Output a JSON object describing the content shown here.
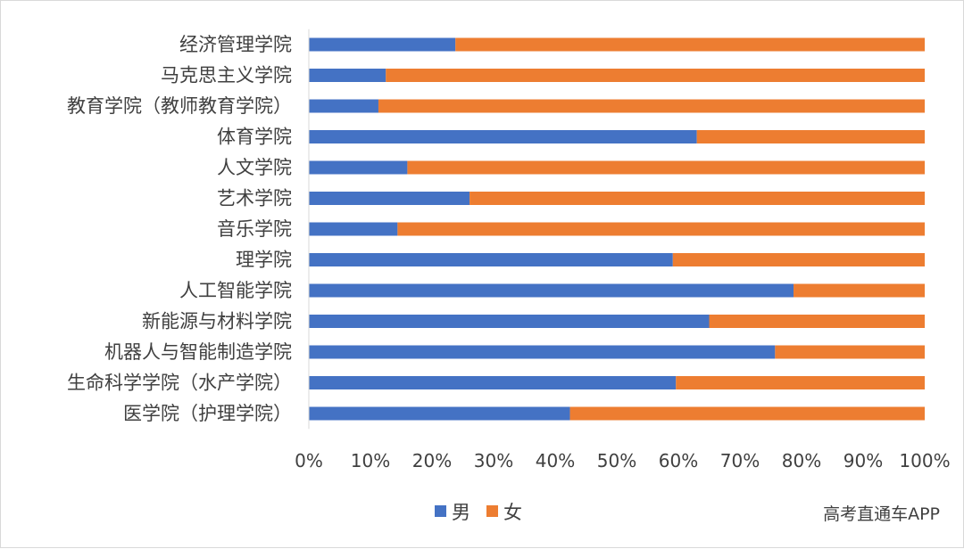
{
  "chart_data": {
    "type": "bar",
    "orientation": "horizontal",
    "stacked": "percent",
    "categories": [
      "经济管理学院",
      "马克思主义学院",
      "教育学院（教师教育学院）",
      "体育学院",
      "人文学院",
      "艺术学院",
      "音乐学院",
      "理学院",
      "人工智能学院",
      "新能源与材料学院",
      "机器人与智能制造学院",
      "生命科学学院（水产学院）",
      "医学院（护理学院）"
    ],
    "series": [
      {
        "name": "男",
        "color": "#4472C4",
        "values": [
          23.8,
          12.5,
          11.3,
          63.0,
          16.0,
          26.1,
          14.4,
          59.1,
          78.7,
          65.0,
          75.7,
          59.6,
          42.4
        ]
      },
      {
        "name": "女",
        "color": "#ED7D31",
        "values": [
          76.2,
          87.5,
          88.7,
          37.0,
          84.0,
          73.9,
          85.6,
          40.9,
          21.3,
          35.0,
          24.3,
          40.4,
          57.6
        ]
      }
    ],
    "xlim": [
      0,
      100
    ],
    "x_ticks": [
      "0%",
      "10%",
      "20%",
      "30%",
      "40%",
      "50%",
      "60%",
      "70%",
      "80%",
      "90%",
      "100%"
    ],
    "legend_position": "bottom",
    "grid": false,
    "title": "",
    "xlabel": "",
    "ylabel": ""
  },
  "watermark": "高考直通车APP"
}
